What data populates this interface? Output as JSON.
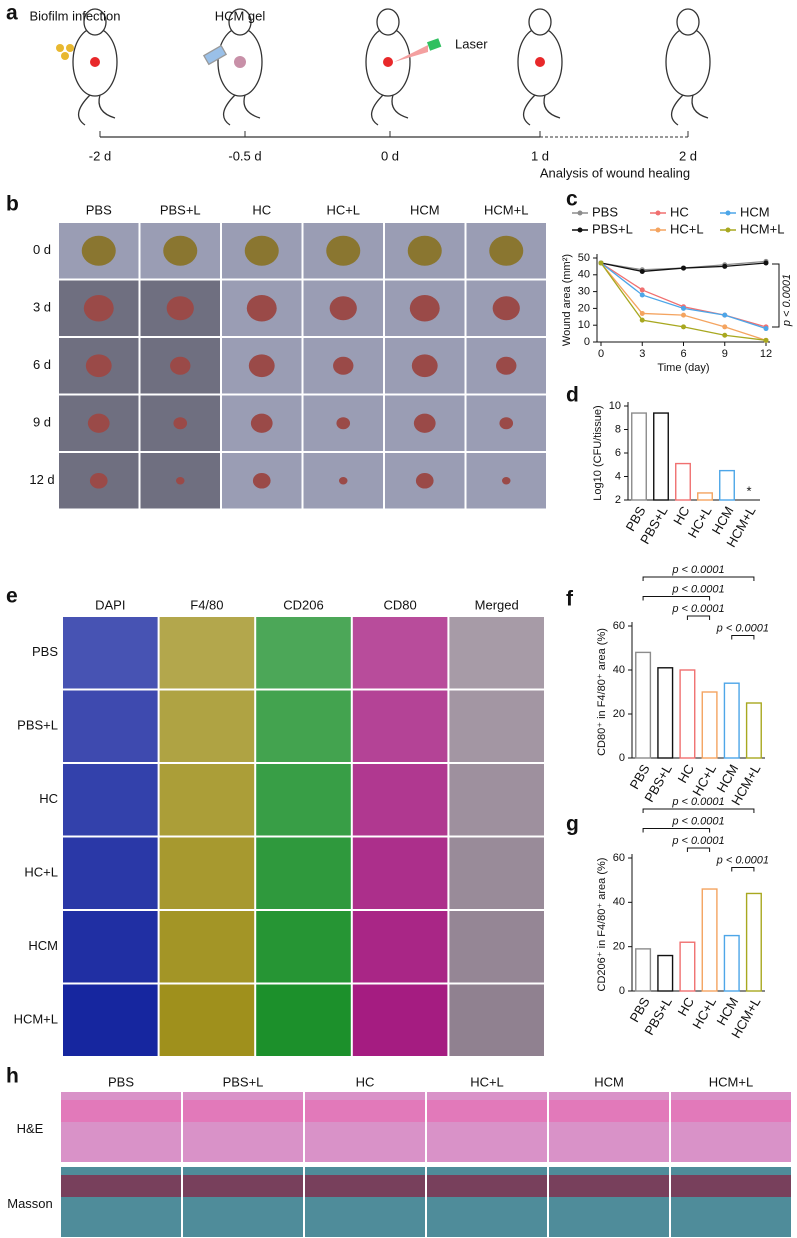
{
  "panels": {
    "labels": [
      "a",
      "b",
      "c",
      "d",
      "e",
      "f",
      "g",
      "h"
    ]
  },
  "timeline": {
    "events": [
      "Biofilm infection",
      "HCM gel",
      "Laser"
    ],
    "ticks": [
      "-2 d",
      "-0.5 d",
      "0 d",
      "1 d",
      "2 d"
    ],
    "note": "Analysis of wound healing"
  },
  "photos": {
    "columns": [
      "PBS",
      "PBS+L",
      "HC",
      "HC+L",
      "HCM",
      "HCM+L"
    ],
    "rows": [
      "0 d",
      "3 d",
      "6 d",
      "9 d",
      "12 d"
    ]
  },
  "staining": {
    "columns": [
      "DAPI",
      "F4/80",
      "CD206",
      "CD80",
      "Merged"
    ],
    "rows": [
      "PBS",
      "PBS+L",
      "HC",
      "HC+L",
      "HCM",
      "HCM+L"
    ]
  },
  "histology": {
    "columns": [
      "PBS",
      "PBS+L",
      "HC",
      "HC+L",
      "HCM",
      "HCM+L"
    ],
    "rows": [
      "H&E",
      "Masson"
    ]
  },
  "chart_data": [
    {
      "type": "line",
      "xlabel": "Time (day)",
      "ylabel": "Wound area (mm²)",
      "x": [
        0,
        3,
        6,
        9,
        12
      ],
      "xlim": [
        0,
        12
      ],
      "xticks": [
        0,
        3,
        6,
        9,
        12
      ],
      "ylim": [
        0,
        50
      ],
      "yticks": [
        0,
        10,
        20,
        30,
        40,
        50
      ],
      "series": [
        {
          "name": "PBS",
          "color": "#8c8c8c",
          "values": [
            47,
            43,
            44,
            46,
            48
          ]
        },
        {
          "name": "PBS+L",
          "color": "#111111",
          "values": [
            47,
            42,
            44,
            45,
            47
          ]
        },
        {
          "name": "HC",
          "color": "#f07070",
          "values": [
            47,
            31,
            21,
            16,
            9
          ]
        },
        {
          "name": "HC+L",
          "color": "#f4a460",
          "values": [
            47,
            17,
            16,
            9,
            1
          ]
        },
        {
          "name": "HCM",
          "color": "#4da6e8",
          "values": [
            47,
            28,
            20,
            16,
            8
          ]
        },
        {
          "name": "HCM+L",
          "color": "#a8a820",
          "values": [
            47,
            13,
            9,
            4,
            1
          ]
        }
      ],
      "annotations": [
        "p < 0.0001"
      ]
    },
    {
      "type": "bar",
      "ylabel": "Log10 (CFU/tissue)",
      "categories": [
        "PBS",
        "PBS+L",
        "HC",
        "HC+L",
        "HCM",
        "HCM+L"
      ],
      "values": [
        9.4,
        9.4,
        5.1,
        2.6,
        4.5,
        null
      ],
      "colors": [
        "#8c8c8c",
        "#111111",
        "#f07070",
        "#f4a460",
        "#4da6e8",
        "#a8a820"
      ],
      "ylim": [
        2,
        10
      ],
      "yticks": [
        2,
        4,
        6,
        8,
        10
      ],
      "annotations": [
        "*"
      ]
    },
    {
      "type": "bar",
      "ylabel": "CD80⁺ in F4/80⁺ area (%)",
      "categories": [
        "PBS",
        "PBS+L",
        "HC",
        "HC+L",
        "HCM",
        "HCM+L"
      ],
      "values": [
        48,
        41,
        40,
        30,
        34,
        25
      ],
      "colors": [
        "#8c8c8c",
        "#111111",
        "#f07070",
        "#f4a460",
        "#4da6e8",
        "#a8a820"
      ],
      "ylim": [
        0,
        60
      ],
      "yticks": [
        0,
        20,
        40,
        60
      ],
      "annotations": [
        "p < 0.0001",
        "p < 0.0001",
        "p < 0.0001",
        "p < 0.0001"
      ]
    },
    {
      "type": "bar",
      "ylabel": "CD206⁺ in F4/80⁺ area (%)",
      "categories": [
        "PBS",
        "PBS+L",
        "HC",
        "HC+L",
        "HCM",
        "HCM+L"
      ],
      "values": [
        19,
        16,
        22,
        46,
        25,
        44
      ],
      "colors": [
        "#8c8c8c",
        "#111111",
        "#f07070",
        "#f4a460",
        "#4da6e8",
        "#a8a820"
      ],
      "ylim": [
        0,
        60
      ],
      "yticks": [
        0,
        20,
        40,
        60
      ],
      "annotations": [
        "p < 0.0001",
        "p < 0.0001",
        "p < 0.0001",
        "p < 0.0001"
      ]
    }
  ]
}
